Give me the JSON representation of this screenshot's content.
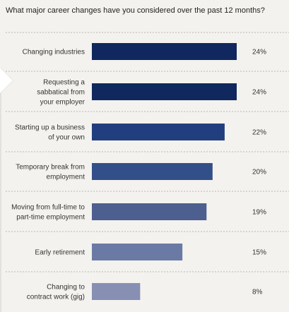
{
  "chart_data": {
    "type": "bar",
    "orientation": "horizontal",
    "title": "What major career changes have you considered over the past 12 months?",
    "categories": [
      "Changing industries",
      "Requesting a sabbatical from your employer",
      "Starting up a business of your own",
      "Temporary break from employment",
      "Moving from full-time to part-time employment",
      "Early retirement",
      "Changing to contract work (gig)"
    ],
    "label_lines": [
      [
        "Changing industries"
      ],
      [
        "Requesting a",
        "sabbatical from",
        "your employer"
      ],
      [
        "Starting up a business",
        "of your own"
      ],
      [
        "Temporary break from",
        "employment"
      ],
      [
        "Moving from full-time to",
        "part-time employment"
      ],
      [
        "Early retirement"
      ],
      [
        "Changing to",
        "contract work (gig)"
      ]
    ],
    "values": [
      24,
      24,
      22,
      20,
      19,
      15,
      8
    ],
    "value_labels": [
      "24%",
      "24%",
      "22%",
      "20%",
      "19%",
      "15%",
      "8%"
    ],
    "unit": "%",
    "xlim": [
      0,
      24
    ],
    "grid": false,
    "legend": "none",
    "bar_colors": [
      "#10285e",
      "#10285e",
      "#213f7e",
      "#324f89",
      "#4c5f8f",
      "#6a7aa5",
      "#8790b3"
    ],
    "separator_color": "#b8b6b0",
    "background": "#f4f2ee"
  }
}
